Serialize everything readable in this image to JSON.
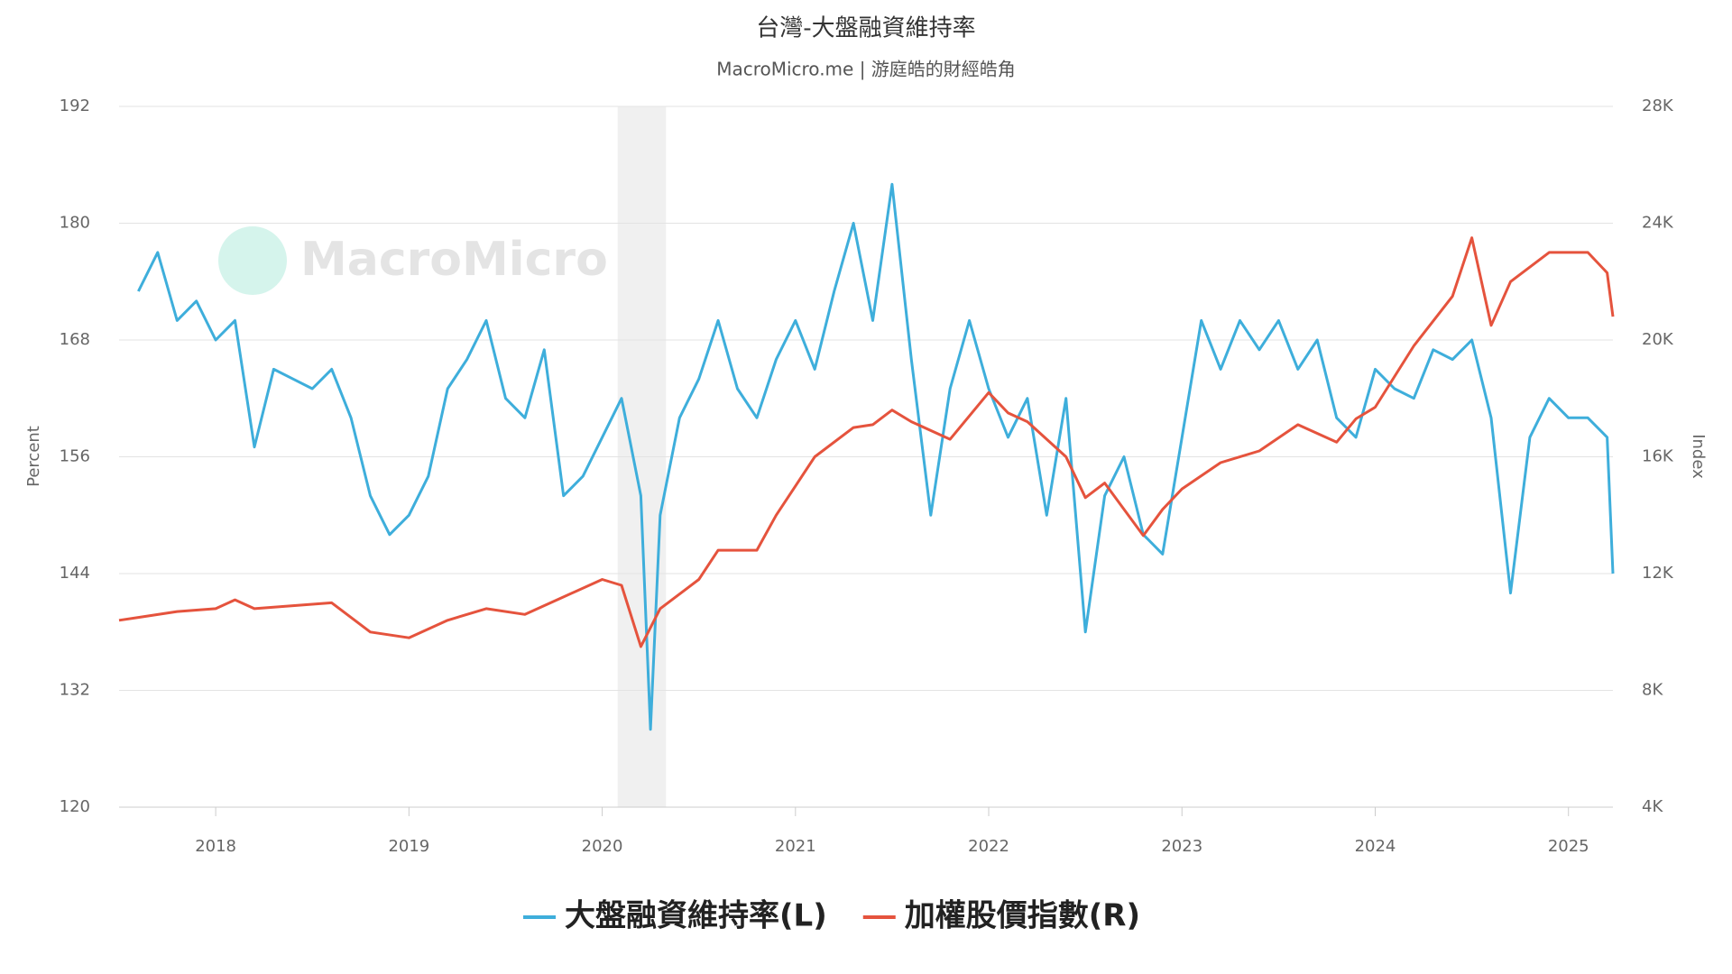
{
  "chart_data": {
    "type": "line",
    "title": "台灣-大盤融資維持率",
    "subtitle": "MacroMicro.me | 游庭皓的財經皓角",
    "watermark": "MacroMicro",
    "y_label": "Percent",
    "y2_label": "Index",
    "xlim": [
      2017.5,
      2025.23
    ],
    "xticks": [
      2018,
      2019,
      2020,
      2021,
      2022,
      2023,
      2024,
      2025
    ],
    "ylim": [
      120,
      192
    ],
    "yticks": [
      120,
      132,
      144,
      156,
      168,
      180,
      192
    ],
    "y2lim": [
      4000,
      28000
    ],
    "y2ticks": [
      {
        "value": 4000,
        "label": "4K"
      },
      {
        "value": 8000,
        "label": "8K"
      },
      {
        "value": 12000,
        "label": "12K"
      },
      {
        "value": 16000,
        "label": "16K"
      },
      {
        "value": 20000,
        "label": "20K"
      },
      {
        "value": 24000,
        "label": "24K"
      },
      {
        "value": 28000,
        "label": "28K"
      }
    ],
    "grid": true,
    "shaded_regions": [
      [
        2020.08,
        2020.33
      ]
    ],
    "legend": "bottom",
    "series": [
      {
        "name": "大盤融資維持率(L)",
        "color": "#3eaedb",
        "axis": "y",
        "x": [
          2017.6,
          2017.7,
          2017.8,
          2017.9,
          2018.0,
          2018.1,
          2018.2,
          2018.3,
          2018.4,
          2018.5,
          2018.6,
          2018.7,
          2018.8,
          2018.9,
          2019.0,
          2019.1,
          2019.2,
          2019.3,
          2019.4,
          2019.5,
          2019.6,
          2019.7,
          2019.8,
          2019.9,
          2020.0,
          2020.1,
          2020.2,
          2020.25,
          2020.3,
          2020.4,
          2020.5,
          2020.6,
          2020.7,
          2020.8,
          2020.9,
          2021.0,
          2021.1,
          2021.2,
          2021.3,
          2021.4,
          2021.5,
          2021.6,
          2021.7,
          2021.8,
          2021.9,
          2022.0,
          2022.1,
          2022.2,
          2022.3,
          2022.4,
          2022.5,
          2022.6,
          2022.7,
          2022.8,
          2022.9,
          2023.0,
          2023.1,
          2023.2,
          2023.3,
          2023.4,
          2023.5,
          2023.6,
          2023.7,
          2023.8,
          2023.9,
          2024.0,
          2024.1,
          2024.2,
          2024.3,
          2024.4,
          2024.5,
          2024.6,
          2024.7,
          2024.8,
          2024.9,
          2025.0,
          2025.1,
          2025.2,
          2025.23
        ],
        "values": [
          173,
          177,
          170,
          172,
          168,
          170,
          157,
          165,
          164,
          163,
          165,
          160,
          152,
          148,
          150,
          154,
          163,
          166,
          170,
          162,
          160,
          167,
          152,
          154,
          158,
          162,
          152,
          128,
          150,
          160,
          164,
          170,
          163,
          160,
          166,
          170,
          165,
          173,
          180,
          170,
          184,
          166,
          150,
          163,
          170,
          163,
          158,
          162,
          150,
          162,
          138,
          152,
          156,
          148,
          146,
          158,
          170,
          165,
          170,
          167,
          170,
          165,
          168,
          160,
          158,
          165,
          163,
          162,
          167,
          166,
          168,
          160,
          142,
          158,
          162,
          160,
          160,
          158,
          144
        ]
      },
      {
        "name": "加權股價指數(R)",
        "color": "#e5533d",
        "axis": "y2",
        "x": [
          2017.5,
          2017.6,
          2017.8,
          2018.0,
          2018.1,
          2018.2,
          2018.4,
          2018.6,
          2018.8,
          2019.0,
          2019.2,
          2019.4,
          2019.6,
          2019.8,
          2020.0,
          2020.1,
          2020.2,
          2020.3,
          2020.5,
          2020.6,
          2020.8,
          2020.9,
          2021.0,
          2021.1,
          2021.3,
          2021.4,
          2021.5,
          2021.6,
          2021.8,
          2021.9,
          2022.0,
          2022.1,
          2022.2,
          2022.4,
          2022.5,
          2022.6,
          2022.8,
          2022.9,
          2023.0,
          2023.2,
          2023.4,
          2023.6,
          2023.8,
          2023.9,
          2024.0,
          2024.2,
          2024.4,
          2024.5,
          2024.6,
          2024.7,
          2024.9,
          2025.0,
          2025.1,
          2025.2,
          2025.23
        ],
        "values": [
          10400,
          10500,
          10700,
          10800,
          11100,
          10800,
          10900,
          11000,
          10000,
          9800,
          10400,
          10800,
          10600,
          11200,
          11800,
          11600,
          9500,
          10800,
          11800,
          12800,
          12800,
          14000,
          15000,
          16000,
          17000,
          17100,
          17600,
          17200,
          16600,
          17400,
          18200,
          17500,
          17200,
          16000,
          14600,
          15100,
          13300,
          14200,
          14900,
          15800,
          16200,
          17100,
          16500,
          17300,
          17700,
          19800,
          21500,
          23500,
          20500,
          22000,
          23000,
          23000,
          23000,
          22300,
          20800
        ]
      }
    ]
  }
}
